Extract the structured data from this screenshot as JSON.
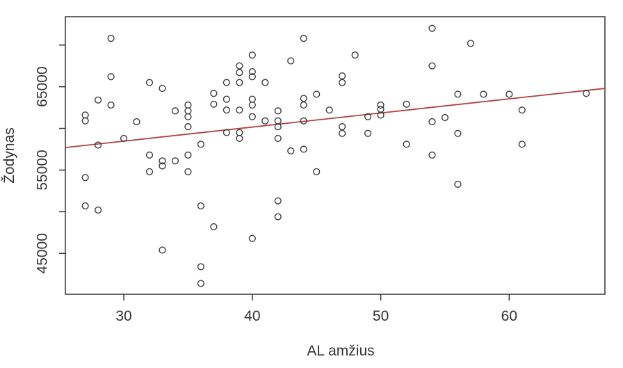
{
  "chart_data": {
    "type": "scatter",
    "title": "",
    "xlabel": "AL amžius",
    "ylabel": "Žodynas",
    "xlim": [
      25.45,
      67.45
    ],
    "ylim": [
      40100,
      73400
    ],
    "grid": false,
    "legend": null,
    "x_ticks": [
      30,
      40,
      50,
      60
    ],
    "x_tick_labels": [
      "30",
      "40",
      "50",
      "60"
    ],
    "y_ticks": [
      45000,
      50000,
      55000,
      60000,
      65000,
      70000
    ],
    "y_tick_labels": [
      "45000",
      "",
      "55000",
      "",
      "65000",
      ""
    ],
    "points": [
      [
        29,
        70800
      ],
      [
        29,
        66200
      ],
      [
        32,
        65500
      ],
      [
        33,
        64800
      ],
      [
        28,
        63400
      ],
      [
        29,
        62800
      ],
      [
        27,
        61600
      ],
      [
        27,
        60900
      ],
      [
        31,
        60800
      ],
      [
        34,
        62100
      ],
      [
        35,
        62800
      ],
      [
        35,
        62100
      ],
      [
        35,
        61400
      ],
      [
        35,
        60200
      ],
      [
        37,
        64200
      ],
      [
        37,
        62900
      ],
      [
        38,
        65500
      ],
      [
        38,
        63500
      ],
      [
        38,
        62200
      ],
      [
        39,
        67500
      ],
      [
        39,
        66700
      ],
      [
        39,
        65500
      ],
      [
        39,
        62200
      ],
      [
        28,
        58000
      ],
      [
        30,
        58800
      ],
      [
        36,
        58100
      ],
      [
        38,
        59500
      ],
      [
        39,
        59500
      ],
      [
        39,
        58800
      ],
      [
        44,
        70800
      ],
      [
        40,
        68800
      ],
      [
        48,
        68800
      ],
      [
        43,
        68100
      ],
      [
        40,
        66800
      ],
      [
        40,
        66200
      ],
      [
        41,
        65500
      ],
      [
        47,
        66300
      ],
      [
        47,
        65500
      ],
      [
        45,
        64100
      ],
      [
        40,
        63500
      ],
      [
        40,
        62800
      ],
      [
        44,
        63600
      ],
      [
        44,
        62800
      ],
      [
        40,
        61400
      ],
      [
        42,
        62100
      ],
      [
        41,
        60900
      ],
      [
        42,
        60900
      ],
      [
        42,
        60200
      ],
      [
        44,
        60900
      ],
      [
        46,
        62200
      ],
      [
        50,
        62800
      ],
      [
        50,
        62300
      ],
      [
        50,
        61600
      ],
      [
        49,
        61400
      ],
      [
        52,
        62900
      ],
      [
        47,
        60200
      ],
      [
        47,
        59400
      ],
      [
        49,
        59400
      ],
      [
        42,
        58800
      ],
      [
        43,
        57300
      ],
      [
        44,
        57500
      ],
      [
        52,
        58100
      ],
      [
        54,
        72000
      ],
      [
        57,
        70200
      ],
      [
        54,
        67500
      ],
      [
        56,
        64100
      ],
      [
        58,
        64100
      ],
      [
        60,
        64100
      ],
      [
        66,
        64200
      ],
      [
        61,
        62200
      ],
      [
        55,
        61300
      ],
      [
        54,
        60800
      ],
      [
        56,
        59400
      ],
      [
        61,
        58100
      ],
      [
        32,
        56800
      ],
      [
        33,
        56100
      ],
      [
        33,
        55500
      ],
      [
        34,
        56100
      ],
      [
        35,
        56800
      ],
      [
        35,
        54800
      ],
      [
        32,
        54800
      ],
      [
        27,
        54100
      ],
      [
        27,
        50700
      ],
      [
        28,
        50200
      ],
      [
        36,
        50700
      ],
      [
        37,
        48200
      ],
      [
        33,
        45400
      ],
      [
        36,
        43400
      ],
      [
        36,
        41400
      ],
      [
        45,
        54800
      ],
      [
        42,
        51300
      ],
      [
        42,
        49400
      ],
      [
        40,
        46800
      ],
      [
        54,
        56800
      ],
      [
        56,
        53300
      ]
    ],
    "trend_line": {
      "x1": 25.45,
      "y1": 57700,
      "x2": 67.45,
      "y2": 64800
    },
    "colors": {
      "background": "#ffffff",
      "axis": "#333333",
      "text": "#333333",
      "point_stroke": "#3a3a3a",
      "trend": "#b04040"
    }
  }
}
